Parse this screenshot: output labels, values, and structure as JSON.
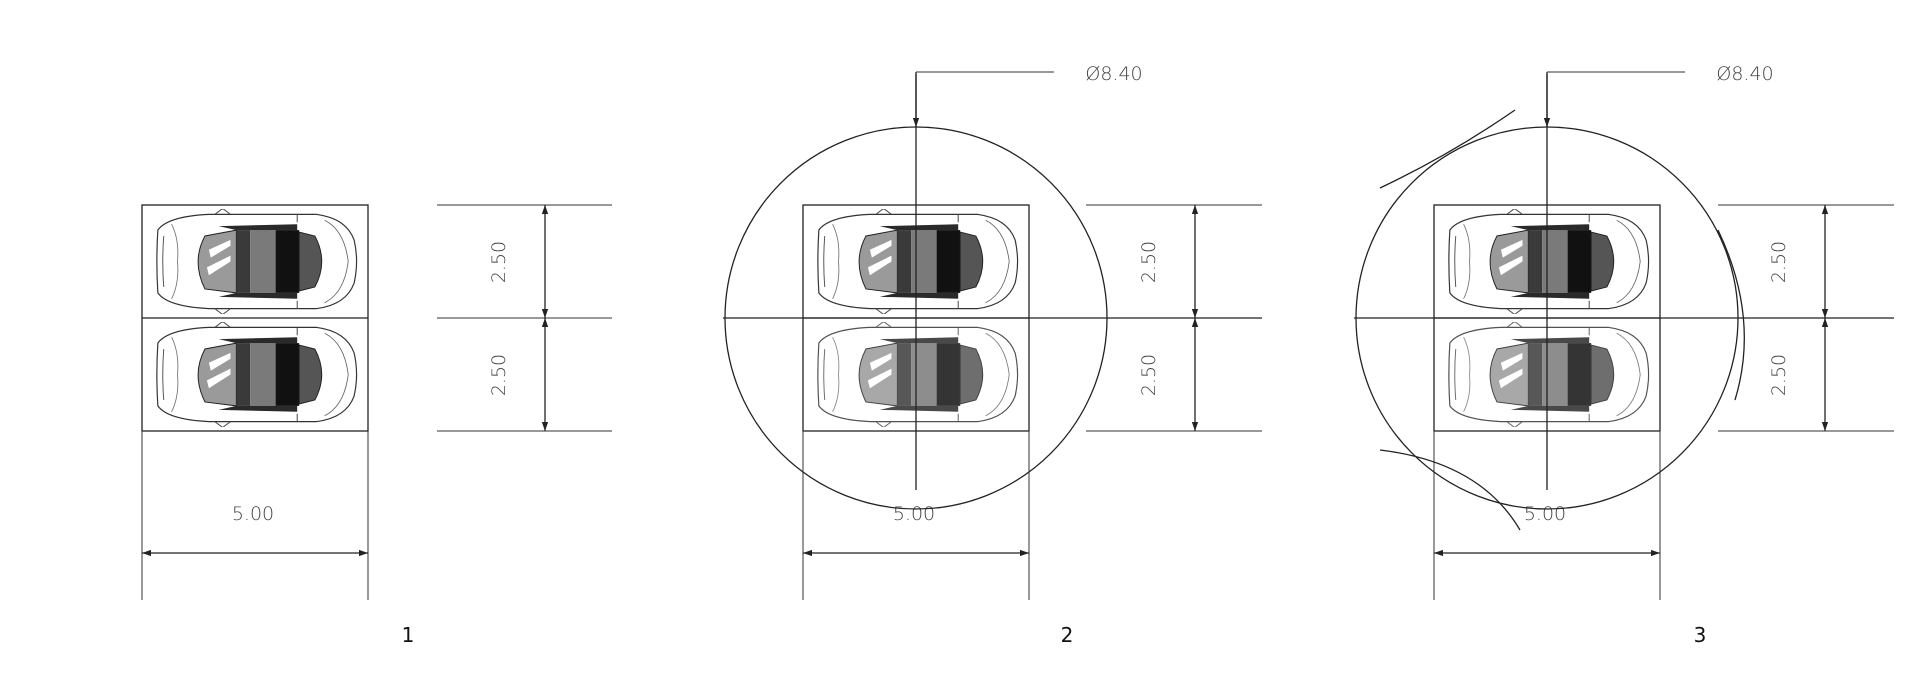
{
  "diagram": {
    "panels": [
      {
        "number": "1",
        "width_label": "5.00",
        "bay_labels": [
          "2.50",
          "2.50"
        ],
        "circle": false,
        "diameter_label": "",
        "arcs": false
      },
      {
        "number": "2",
        "width_label": "5.00",
        "bay_labels": [
          "2.50",
          "2.50"
        ],
        "circle": true,
        "diameter_label": "Ø8.40",
        "arcs": false
      },
      {
        "number": "3",
        "width_label": "5.00",
        "bay_labels": [
          "2.50",
          "2.50"
        ],
        "circle": true,
        "diameter_label": "Ø8.40",
        "arcs": true
      }
    ],
    "colors": {
      "line": "#222222",
      "text": "#444444",
      "car_dark": "#1a1a1a",
      "car_mid": "#6e6e6e",
      "car_light": "#bdbdbd"
    }
  }
}
